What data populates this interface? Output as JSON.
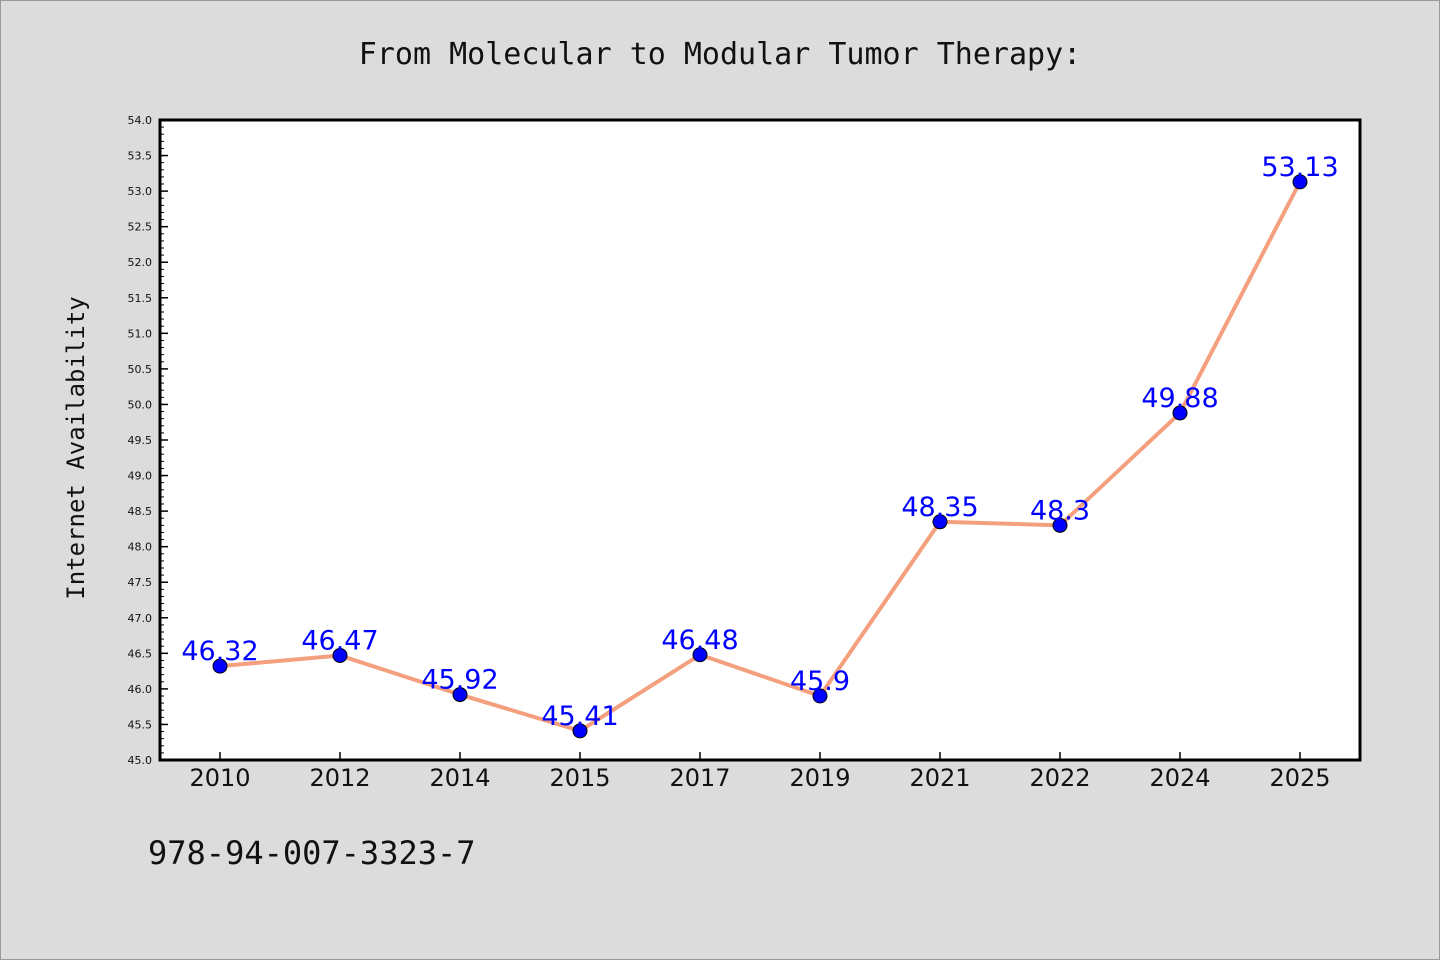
{
  "chart_data": {
    "type": "line",
    "title": "From Molecular to Modular Tumor Therapy:",
    "xlabel": "",
    "ylabel": "Internet Availability",
    "ylim": [
      45.0,
      54.0
    ],
    "yticks": [
      "45.0",
      "45.5",
      "46.0",
      "46.5",
      "47.0",
      "47.5",
      "48.0",
      "48.5",
      "49.0",
      "49.5",
      "50.0",
      "50.5",
      "51.0",
      "51.5",
      "52.0",
      "52.5",
      "53.0",
      "53.5",
      "54.0"
    ],
    "categories": [
      "2010",
      "2012",
      "2014",
      "2015",
      "2017",
      "2019",
      "2021",
      "2022",
      "2024",
      "2025"
    ],
    "series": [
      {
        "values": [
          46.32,
          46.47,
          45.92,
          45.41,
          46.48,
          45.9,
          48.35,
          48.3,
          49.88,
          53.13
        ],
        "labels": [
          "46.32",
          "46.47",
          "45.92",
          "45.41",
          "46.48",
          "45.9",
          "48.35",
          "48.3",
          "49.88",
          "53.13"
        ],
        "line_color": "#f4a07e",
        "marker_color": "#0000ff"
      }
    ],
    "grid": false,
    "legend": "none"
  },
  "footer": {
    "text": "978-94-007-3323-7"
  },
  "colors": {
    "background": "#dcdcdc",
    "plot_background": "#ffffff",
    "label_color": "#0000ff"
  }
}
